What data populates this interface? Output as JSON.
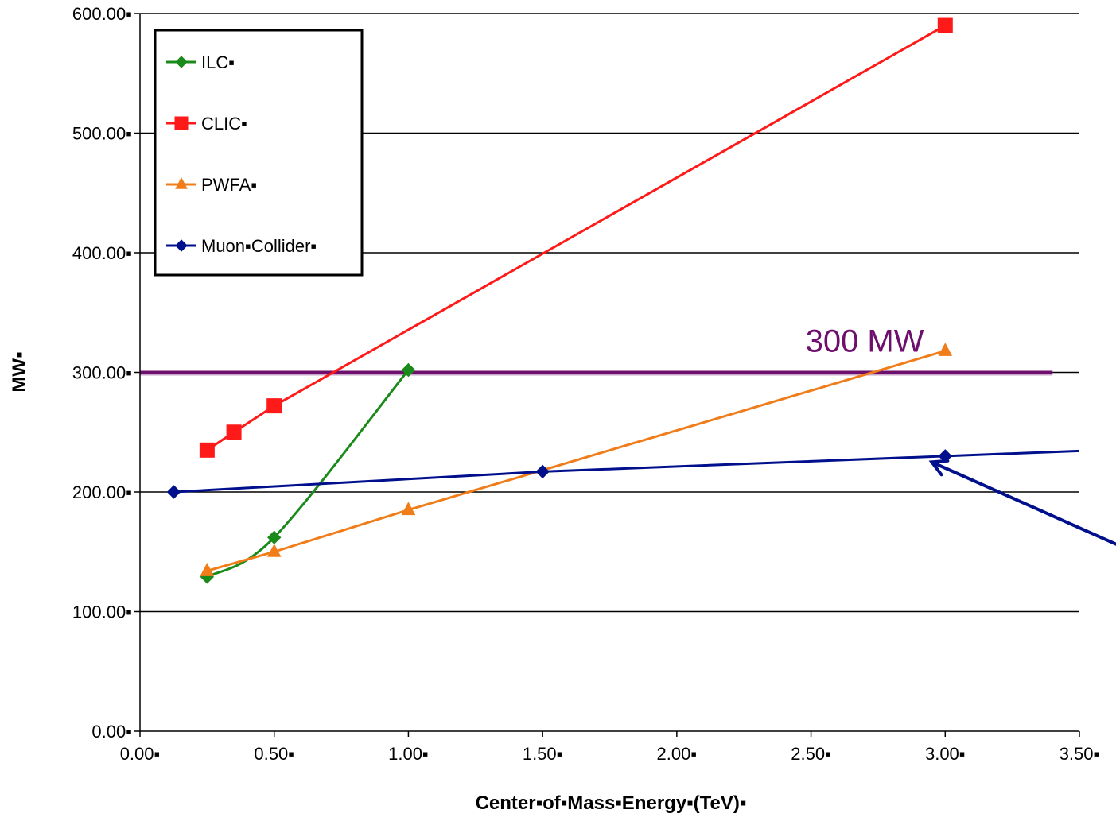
{
  "chart_data": {
    "type": "line",
    "title": "",
    "xlabel": "Center▪of▪Mass▪Energy▪(TeV)▪",
    "ylabel": "MW▪",
    "xlim": [
      0,
      3.5
    ],
    "ylim": [
      0,
      600
    ],
    "x_ticks": [
      "0.00▪",
      "0.50▪",
      "1.00▪",
      "1.50▪",
      "2.00▪",
      "2.50▪",
      "3.00▪",
      "3.50▪"
    ],
    "y_ticks": [
      "0.00▪",
      "100.00▪",
      "200.00▪",
      "300.00▪",
      "400.00▪",
      "500.00▪",
      "600.00▪"
    ],
    "grid": "horizontal",
    "legend_position": "top-left",
    "series": [
      {
        "name": "ILC▪",
        "color": "#1a8a1a",
        "marker": "diamond",
        "smooth": true,
        "points": [
          [
            0.25,
            129
          ],
          [
            0.5,
            162
          ],
          [
            1.0,
            302
          ]
        ]
      },
      {
        "name": "CLIC▪",
        "color": "#ff1a1a",
        "marker": "square",
        "smooth": false,
        "points": [
          [
            0.25,
            235
          ],
          [
            0.35,
            250
          ],
          [
            0.5,
            272
          ],
          [
            3.0,
            590
          ]
        ]
      },
      {
        "name": "PWFA▪",
        "color": "#f07d1a",
        "marker": "triangle",
        "smooth": false,
        "points": [
          [
            0.25,
            134
          ],
          [
            0.5,
            150
          ],
          [
            1.0,
            185
          ],
          [
            3.0,
            318
          ]
        ]
      },
      {
        "name": "Muon▪Collider▪",
        "color": "#000f8c",
        "marker": "diamond",
        "smooth": false,
        "extend_to_x": 3.5,
        "points": [
          [
            0.126,
            200
          ],
          [
            1.5,
            217
          ],
          [
            3.0,
            230
          ]
        ]
      }
    ],
    "reference_line": {
      "y": 300,
      "x_range": [
        0,
        3.4
      ],
      "label": "300 MW",
      "label_x": 2.7,
      "color": "#6e0f6e"
    },
    "annotation_arrow": {
      "from": [
        3.65,
        155
      ],
      "to": [
        2.95,
        225
      ],
      "color": "#000f8c"
    }
  }
}
